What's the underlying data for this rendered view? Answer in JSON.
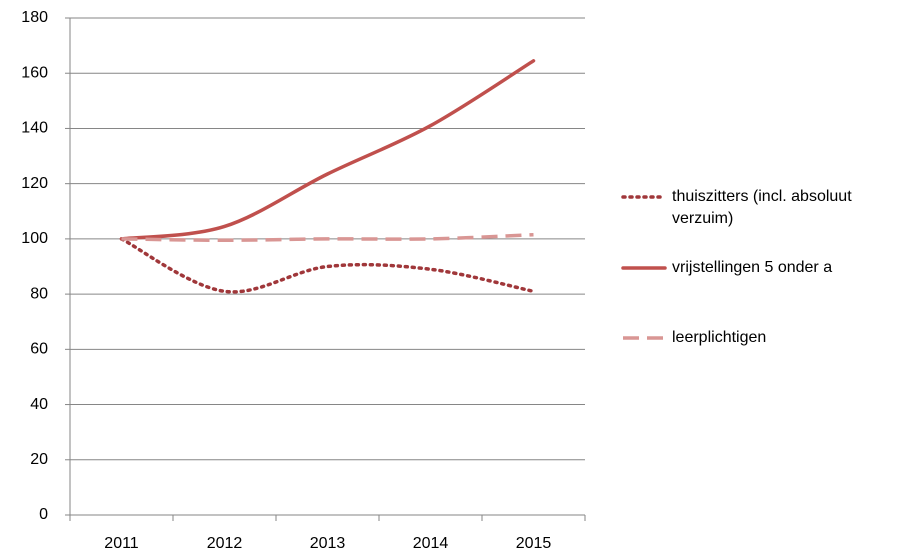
{
  "chart_data": {
    "type": "line",
    "categories": [
      "2011",
      "2012",
      "2013",
      "2014",
      "2015"
    ],
    "series": [
      {
        "name": "thuiszitters (incl. absoluut verzuim)",
        "color": "#a0373a",
        "style": "dotted",
        "values": [
          100,
          81,
          90,
          89,
          81
        ]
      },
      {
        "name": "vrijstellingen 5 onder a",
        "color": "#c0504d",
        "style": "solid",
        "values": [
          100,
          104.5,
          123.5,
          141,
          164.5
        ]
      },
      {
        "name": "leerplichtigen",
        "color": "#d99694",
        "style": "dashed",
        "values": [
          100,
          99.5,
          100,
          100,
          101.5
        ]
      }
    ],
    "ylim": [
      0,
      180
    ],
    "yticks": [
      0,
      20,
      40,
      60,
      80,
      100,
      120,
      140,
      160,
      180
    ],
    "grid": true,
    "legend": "right"
  }
}
